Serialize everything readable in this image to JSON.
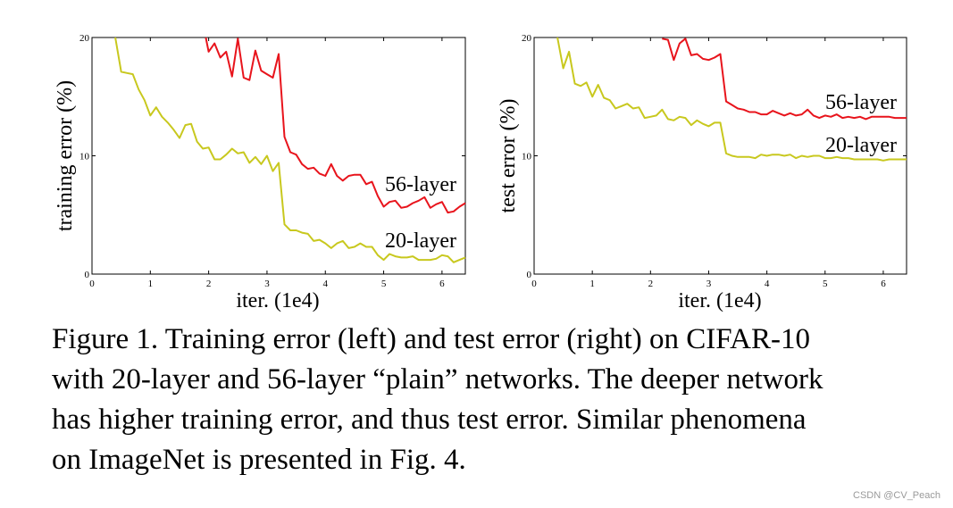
{
  "chart_data": [
    {
      "type": "line",
      "ylabel": "training error (%)",
      "xlabel": "iter. (1e4)",
      "xlim": [
        0,
        6.4
      ],
      "ylim": [
        0,
        20
      ],
      "xticks": [
        "0",
        "1",
        "2",
        "3",
        "4",
        "5",
        "6"
      ],
      "yticks": [
        "0",
        "10",
        "20"
      ],
      "grid": false,
      "series": [
        {
          "name": "56-layer",
          "color": "#e8141c",
          "x": [
            1.95,
            2.0,
            2.1,
            2.2,
            2.3,
            2.4,
            2.5,
            2.6,
            2.7,
            2.8,
            2.9,
            3.0,
            3.1,
            3.2,
            3.3,
            3.4,
            3.5,
            3.6,
            3.7,
            3.8,
            3.9,
            4.0,
            4.1,
            4.2,
            4.3,
            4.4,
            4.5,
            4.6,
            4.7,
            4.8,
            4.9,
            5.0,
            5.1,
            5.2,
            5.3,
            5.4,
            5.5,
            5.6,
            5.7,
            5.8,
            5.9,
            6.0,
            6.1,
            6.2,
            6.3,
            6.4
          ],
          "values": [
            20.0,
            18.8,
            19.5,
            18.3,
            18.8,
            16.7,
            19.9,
            16.6,
            16.4,
            18.9,
            17.2,
            16.9,
            16.6,
            18.6,
            11.6,
            10.3,
            10.1,
            9.3,
            8.9,
            9.0,
            8.5,
            8.3,
            9.3,
            8.3,
            7.9,
            8.3,
            8.4,
            8.4,
            7.6,
            7.8,
            6.6,
            5.7,
            6.1,
            6.2,
            5.6,
            5.7,
            6.0,
            6.2,
            6.5,
            5.6,
            5.9,
            6.1,
            5.2,
            5.3,
            5.7,
            6.0
          ]
        },
        {
          "name": "20-layer",
          "color": "#c8c81e",
          "x": [
            0.4,
            0.5,
            0.6,
            0.7,
            0.8,
            0.9,
            1.0,
            1.1,
            1.2,
            1.3,
            1.4,
            1.5,
            1.6,
            1.7,
            1.8,
            1.9,
            2.0,
            2.1,
            2.2,
            2.3,
            2.4,
            2.5,
            2.6,
            2.7,
            2.8,
            2.9,
            3.0,
            3.1,
            3.2,
            3.3,
            3.4,
            3.5,
            3.6,
            3.7,
            3.8,
            3.9,
            4.0,
            4.1,
            4.2,
            4.3,
            4.4,
            4.5,
            4.6,
            4.7,
            4.8,
            4.9,
            5.0,
            5.1,
            5.2,
            5.3,
            5.4,
            5.5,
            5.6,
            5.7,
            5.8,
            5.9,
            6.0,
            6.1,
            6.2,
            6.3,
            6.4
          ],
          "values": [
            20.0,
            17.1,
            17.0,
            16.9,
            15.6,
            14.7,
            13.4,
            14.1,
            13.3,
            12.8,
            12.2,
            11.5,
            12.6,
            12.7,
            11.2,
            10.6,
            10.7,
            9.7,
            9.7,
            10.1,
            10.6,
            10.2,
            10.3,
            9.4,
            9.9,
            9.3,
            10.0,
            8.7,
            9.4,
            4.2,
            3.7,
            3.7,
            3.5,
            3.4,
            2.8,
            2.9,
            2.6,
            2.2,
            2.6,
            2.8,
            2.2,
            2.3,
            2.6,
            2.3,
            2.3,
            1.6,
            1.2,
            1.7,
            1.5,
            1.4,
            1.4,
            1.5,
            1.2,
            1.2,
            1.2,
            1.3,
            1.6,
            1.5,
            1.0,
            1.2,
            1.4
          ]
        }
      ]
    },
    {
      "type": "line",
      "ylabel": "test error (%)",
      "xlabel": "iter. (1e4)",
      "xlim": [
        0,
        6.4
      ],
      "ylim": [
        0,
        20
      ],
      "xticks": [
        "0",
        "1",
        "2",
        "3",
        "4",
        "5",
        "6"
      ],
      "yticks": [
        "0",
        "10",
        "20"
      ],
      "grid": false,
      "series": [
        {
          "name": "56-layer",
          "color": "#e8141c",
          "x": [
            2.2,
            2.3,
            2.4,
            2.5,
            2.6,
            2.7,
            2.8,
            2.9,
            3.0,
            3.1,
            3.2,
            3.3,
            3.4,
            3.5,
            3.6,
            3.7,
            3.8,
            3.9,
            4.0,
            4.1,
            4.2,
            4.3,
            4.4,
            4.5,
            4.6,
            4.7,
            4.8,
            4.9,
            5.0,
            5.1,
            5.2,
            5.3,
            5.4,
            5.5,
            5.6,
            5.7,
            5.8,
            5.9,
            6.0,
            6.1,
            6.2,
            6.3,
            6.4
          ],
          "values": [
            19.9,
            19.8,
            18.1,
            19.5,
            19.9,
            18.5,
            18.6,
            18.2,
            18.1,
            18.3,
            18.6,
            14.6,
            14.3,
            14.0,
            13.9,
            13.7,
            13.7,
            13.5,
            13.5,
            13.8,
            13.6,
            13.4,
            13.6,
            13.4,
            13.5,
            13.9,
            13.4,
            13.2,
            13.4,
            13.3,
            13.5,
            13.2,
            13.3,
            13.2,
            13.3,
            13.1,
            13.3,
            13.3,
            13.3,
            13.3,
            13.2,
            13.2,
            13.2
          ]
        },
        {
          "name": "20-layer",
          "color": "#c8c81e",
          "x": [
            0.4,
            0.5,
            0.6,
            0.7,
            0.8,
            0.9,
            1.0,
            1.1,
            1.2,
            1.3,
            1.4,
            1.5,
            1.6,
            1.7,
            1.8,
            1.9,
            2.0,
            2.1,
            2.2,
            2.3,
            2.4,
            2.5,
            2.6,
            2.7,
            2.8,
            2.9,
            3.0,
            3.1,
            3.2,
            3.3,
            3.4,
            3.5,
            3.6,
            3.7,
            3.8,
            3.9,
            4.0,
            4.1,
            4.2,
            4.3,
            4.4,
            4.5,
            4.6,
            4.7,
            4.8,
            4.9,
            5.0,
            5.1,
            5.2,
            5.3,
            5.4,
            5.5,
            5.6,
            5.7,
            5.8,
            5.9,
            6.0,
            6.1,
            6.2,
            6.3,
            6.4
          ],
          "values": [
            20.0,
            17.4,
            18.8,
            16.1,
            15.9,
            16.2,
            15.0,
            16.0,
            14.9,
            14.7,
            14.0,
            14.2,
            14.4,
            14.0,
            14.1,
            13.2,
            13.3,
            13.4,
            13.9,
            13.1,
            13.0,
            13.3,
            13.2,
            12.6,
            13.0,
            12.7,
            12.5,
            12.8,
            12.8,
            10.2,
            10.0,
            9.9,
            9.9,
            9.9,
            9.8,
            10.1,
            10.0,
            10.1,
            10.1,
            10.0,
            10.1,
            9.8,
            10.0,
            9.9,
            10.0,
            10.0,
            9.8,
            9.8,
            9.9,
            9.8,
            9.8,
            9.7,
            9.7,
            9.7,
            9.7,
            9.7,
            9.6,
            9.7,
            9.7,
            9.7,
            9.7
          ]
        }
      ]
    }
  ],
  "caption_lines": [
    "Figure 1. Training error (left) and test error (right) on CIFAR-10",
    "with 20-layer and 56-layer “plain” networks. The deeper network",
    "has higher training error, and thus test error.  Similar phenomena",
    "on ImageNet is presented in Fig. 4."
  ],
  "watermark": "CSDN @CV_Peach"
}
